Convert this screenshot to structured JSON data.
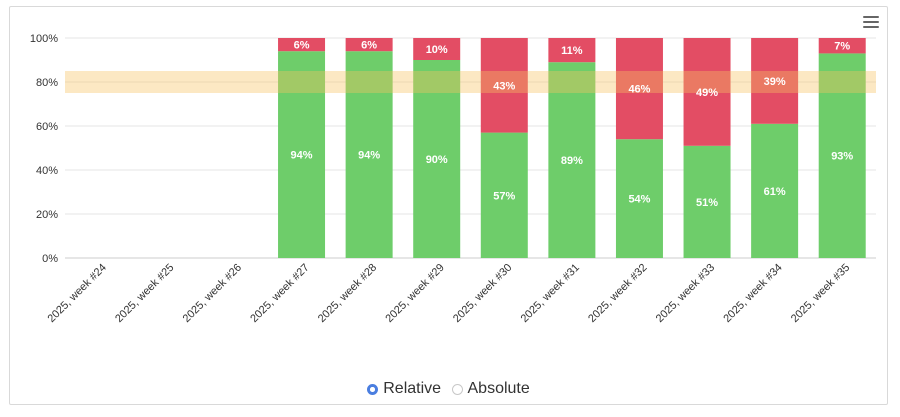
{
  "colors": {
    "pass": "#6ecd6a",
    "fail": "#e34d64",
    "target_band": "#f7c261",
    "grid": "#e6e6e6",
    "axis_text": "#333333",
    "radio_active": "#4a7ee0"
  },
  "icons": {
    "menu": "hamburger-menu-icon"
  },
  "chart_data": {
    "type": "bar",
    "stacked": true,
    "categories": [
      "2025, week #24",
      "2025, week #25",
      "2025, week #26",
      "2025, week #27",
      "2025, week #28",
      "2025, week #29",
      "2025, week #30",
      "2025, week #31",
      "2025, week #32",
      "2025, week #33",
      "2025, week #34",
      "2025, week #35"
    ],
    "series": [
      {
        "color": "#6ecd6a",
        "values": [
          null,
          null,
          null,
          94,
          94,
          90,
          57,
          89,
          54,
          51,
          61,
          93
        ]
      },
      {
        "color": "#e34d64",
        "values": [
          null,
          null,
          null,
          6,
          6,
          10,
          43,
          11,
          46,
          49,
          39,
          7
        ]
      }
    ],
    "ylim": [
      0,
      100
    ],
    "yticks": [
      0,
      20,
      40,
      60,
      80,
      100
    ],
    "ytick_suffix": "%",
    "label_suffix": "%",
    "target_band": [
      75,
      85
    ],
    "grid": true,
    "legend": "none"
  },
  "view_toggle": {
    "options": [
      {
        "label": "Relative",
        "selected": true
      },
      {
        "label": "Absolute",
        "selected": false
      }
    ]
  }
}
